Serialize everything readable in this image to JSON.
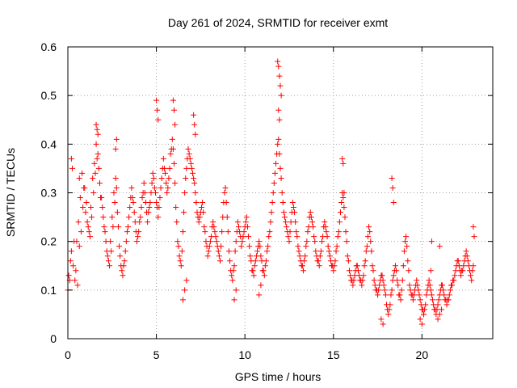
{
  "chart_data": {
    "type": "scatter",
    "title": "Day 261 of 2024, SRMTID for receiver exmt",
    "xlabel": "GPS time / hours",
    "ylabel": "SRMTID / TECUs",
    "xlim": [
      0,
      24
    ],
    "ylim": [
      0,
      0.6
    ],
    "x_ticks": [
      0,
      5,
      10,
      15,
      20
    ],
    "x_tick_labels": [
      "0",
      "5",
      "10",
      "15",
      "20"
    ],
    "y_ticks": [
      0,
      0.1,
      0.2,
      0.3,
      0.4,
      0.5,
      0.6
    ],
    "y_tick_labels": [
      "0",
      "0.1",
      "0.2",
      "0.3",
      "0.4",
      "0.5",
      "0.6"
    ],
    "grid": true,
    "marker": "plus",
    "color": "#ff0000",
    "series": [
      {
        "name": "SRMTID",
        "x": [
          0.0,
          0.1,
          0.2,
          0.3,
          0.4,
          0.5,
          0.6,
          0.7,
          0.8,
          0.9,
          1.0,
          1.1,
          1.2,
          1.3,
          1.4,
          1.5,
          1.6,
          1.7,
          1.8,
          1.9,
          2.0,
          2.1,
          2.2,
          2.3,
          2.4,
          2.5,
          2.6,
          2.7,
          2.8,
          2.9,
          3.0,
          3.1,
          3.2,
          3.3,
          3.4,
          3.5,
          3.6,
          3.7,
          3.8,
          3.9,
          4.0,
          4.1,
          4.2,
          4.3,
          4.4,
          4.5,
          4.6,
          4.7,
          4.8,
          4.9,
          5.0,
          5.1,
          5.2,
          5.3,
          5.4,
          5.5,
          5.6,
          5.7,
          5.8,
          5.9,
          6.0,
          6.1,
          6.2,
          6.3,
          6.4,
          6.5,
          6.6,
          6.7,
          6.8,
          6.9,
          7.0,
          7.1,
          7.2,
          7.3,
          7.4,
          7.5,
          7.6,
          7.7,
          7.8,
          7.9,
          8.0,
          8.1,
          8.2,
          8.3,
          8.4,
          8.5,
          8.6,
          8.7,
          8.8,
          8.9,
          9.0,
          9.1,
          9.2,
          9.3,
          9.4,
          9.5,
          9.6,
          9.7,
          9.8,
          9.9,
          10.0,
          10.1,
          10.2,
          10.3,
          10.4,
          10.5,
          10.6,
          10.7,
          10.8,
          10.9,
          11.0,
          11.1,
          11.2,
          11.3,
          11.4,
          11.5,
          11.6,
          11.7,
          11.8,
          11.9,
          12.0,
          12.1,
          12.2,
          12.3,
          12.4,
          12.5,
          12.6,
          12.7,
          12.8,
          12.9,
          13.0,
          13.1,
          13.2,
          13.3,
          13.4,
          13.5,
          13.6,
          13.7,
          13.8,
          13.9,
          14.0,
          14.1,
          14.2,
          14.3,
          14.4,
          14.5,
          14.6,
          14.7,
          14.8,
          14.9,
          15.0,
          15.1,
          15.2,
          15.3,
          15.4,
          15.5,
          15.6,
          15.7,
          15.8,
          15.9,
          16.0,
          16.1,
          16.2,
          16.3,
          16.4,
          16.5,
          16.6,
          16.7,
          16.8,
          16.9,
          17.0,
          17.1,
          17.2,
          17.3,
          17.4,
          17.5,
          17.6,
          17.7,
          17.8,
          17.9,
          18.0,
          18.1,
          18.2,
          18.3,
          18.4,
          18.5,
          18.6,
          18.7,
          18.8,
          18.9,
          19.0,
          19.1,
          19.2,
          19.3,
          19.4,
          19.5,
          19.6,
          19.7,
          19.8,
          19.9,
          20.0,
          20.1,
          20.2,
          20.3,
          20.4,
          20.5,
          20.6,
          20.7,
          20.8,
          20.9,
          21.0,
          21.1,
          21.2,
          21.3,
          21.4,
          21.5,
          21.6,
          21.7,
          21.8,
          21.9,
          22.0,
          22.1,
          22.2,
          22.3,
          22.4,
          22.5,
          22.6,
          22.7,
          22.8,
          22.9,
          0.05,
          0.15,
          0.35,
          0.45,
          0.55,
          0.65,
          0.75,
          0.85,
          0.95,
          1.05,
          1.15,
          1.25,
          1.35,
          1.45,
          1.55,
          1.65,
          1.75,
          1.85,
          1.95,
          2.05,
          2.15,
          2.25,
          2.35,
          2.45,
          2.55,
          2.65,
          2.75,
          2.85,
          2.95,
          3.05,
          3.15,
          3.25,
          3.35,
          3.45,
          3.55,
          3.65,
          3.75,
          3.85,
          3.95,
          4.05,
          4.15,
          4.25,
          4.35,
          4.45,
          4.55,
          4.65,
          4.75,
          4.85,
          4.95,
          5.05,
          5.15,
          5.25,
          5.35,
          5.45,
          5.55,
          5.65,
          5.75,
          5.85,
          5.95,
          6.05,
          6.15,
          6.25,
          6.35,
          6.45,
          6.55,
          6.65,
          6.75,
          6.85,
          6.95,
          7.05,
          7.15,
          7.25,
          7.35,
          7.45,
          7.55,
          7.65,
          7.75,
          7.85,
          7.95,
          8.05,
          8.15,
          8.25,
          8.35,
          8.45,
          8.55,
          8.65,
          8.75,
          8.85,
          8.95,
          9.05,
          9.15,
          9.25,
          9.35,
          9.45,
          9.55,
          9.65,
          9.75,
          9.85,
          9.95,
          10.05,
          10.15,
          10.25,
          10.35,
          10.45,
          10.55,
          10.65,
          10.75,
          10.85,
          10.95,
          11.05,
          11.15,
          11.25,
          11.35,
          11.45,
          11.55,
          11.65,
          11.75,
          11.85,
          11.95,
          12.05,
          12.15,
          12.25,
          12.35,
          12.45,
          12.55,
          12.65,
          12.75,
          12.85,
          12.95,
          13.05,
          13.15,
          13.25,
          13.35,
          13.45,
          13.55,
          13.65,
          13.75,
          13.85,
          13.95,
          14.05,
          14.15,
          14.25,
          14.35,
          14.45,
          14.55,
          14.65,
          14.75,
          14.85,
          14.95,
          15.05,
          15.15,
          15.25,
          15.35,
          15.45,
          15.55,
          15.65,
          15.75,
          15.85,
          15.95,
          16.05,
          16.15,
          16.25,
          16.35,
          16.45,
          16.55,
          16.65,
          16.75,
          16.85,
          16.95,
          17.05,
          17.15,
          17.25,
          17.35,
          17.45,
          17.55,
          17.65,
          17.75,
          17.85,
          17.95,
          18.05,
          18.15,
          18.25,
          18.35,
          18.45,
          18.55,
          18.65,
          18.75,
          18.85,
          18.95,
          19.05,
          19.15,
          19.25,
          19.35,
          19.45,
          19.55,
          19.65,
          19.75,
          19.85,
          19.95,
          20.05,
          20.15,
          20.25,
          20.35,
          20.45,
          20.55,
          20.65,
          20.75,
          20.85,
          20.95,
          21.05,
          21.15,
          21.25,
          21.35,
          21.45,
          21.55,
          21.65,
          21.75,
          21.85,
          21.95,
          22.05,
          22.15,
          22.25,
          22.35,
          22.45,
          22.55,
          22.65,
          22.75,
          22.85,
          1.6,
          1.65,
          1.7,
          2.7,
          2.75,
          5.0,
          5.05,
          5.1,
          5.95,
          6.0,
          6.05,
          7.1,
          7.15,
          7.2,
          11.85,
          11.9,
          11.95,
          12.0,
          12.05,
          11.9,
          11.95,
          15.5,
          15.55,
          15.6,
          18.3,
          18.35,
          18.4,
          20.5,
          20.55,
          21.0,
          22.9,
          22.95,
          0.2,
          0.25,
          0.65,
          6.5,
          6.6,
          6.7,
          9.4,
          9.5,
          10.8,
          10.9,
          17.7,
          17.8,
          19.9,
          20.0,
          20.1,
          20.9,
          21.0,
          21.1
        ],
        "y": [
          0.1,
          0.12,
          0.18,
          0.15,
          0.12,
          0.2,
          0.24,
          0.29,
          0.34,
          0.31,
          0.26,
          0.24,
          0.22,
          0.27,
          0.33,
          0.36,
          0.4,
          0.38,
          0.32,
          0.29,
          0.25,
          0.22,
          0.18,
          0.16,
          0.2,
          0.25,
          0.3,
          0.33,
          0.26,
          0.19,
          0.15,
          0.13,
          0.16,
          0.2,
          0.23,
          0.27,
          0.31,
          0.28,
          0.24,
          0.2,
          0.22,
          0.25,
          0.29,
          0.32,
          0.28,
          0.24,
          0.27,
          0.3,
          0.34,
          0.31,
          0.28,
          0.25,
          0.29,
          0.33,
          0.37,
          0.34,
          0.3,
          0.33,
          0.38,
          0.41,
          0.36,
          0.27,
          0.2,
          0.17,
          0.15,
          0.22,
          0.3,
          0.35,
          0.39,
          0.37,
          0.35,
          0.33,
          0.3,
          0.26,
          0.24,
          0.26,
          0.28,
          0.23,
          0.2,
          0.17,
          0.19,
          0.21,
          0.24,
          0.22,
          0.2,
          0.18,
          0.16,
          0.22,
          0.28,
          0.31,
          0.25,
          0.18,
          0.14,
          0.12,
          0.15,
          0.2,
          0.24,
          0.22,
          0.19,
          0.21,
          0.23,
          0.25,
          0.21,
          0.17,
          0.14,
          0.13,
          0.16,
          0.18,
          0.2,
          0.17,
          0.14,
          0.13,
          0.16,
          0.19,
          0.22,
          0.26,
          0.3,
          0.34,
          0.38,
          0.41,
          0.35,
          0.3,
          0.26,
          0.24,
          0.22,
          0.2,
          0.24,
          0.28,
          0.26,
          0.22,
          0.19,
          0.17,
          0.15,
          0.14,
          0.17,
          0.2,
          0.23,
          0.26,
          0.24,
          0.21,
          0.18,
          0.16,
          0.15,
          0.18,
          0.21,
          0.24,
          0.22,
          0.19,
          0.17,
          0.15,
          0.14,
          0.16,
          0.19,
          0.22,
          0.26,
          0.3,
          0.27,
          0.22,
          0.17,
          0.14,
          0.12,
          0.11,
          0.13,
          0.15,
          0.14,
          0.12,
          0.11,
          0.13,
          0.16,
          0.19,
          0.23,
          0.2,
          0.15,
          0.12,
          0.1,
          0.09,
          0.11,
          0.13,
          0.12,
          0.1,
          0.07,
          0.05,
          0.07,
          0.1,
          0.13,
          0.15,
          0.12,
          0.09,
          0.08,
          0.12,
          0.18,
          0.21,
          0.16,
          0.11,
          0.09,
          0.08,
          0.1,
          0.12,
          0.1,
          0.08,
          0.06,
          0.05,
          0.07,
          0.1,
          0.12,
          0.1,
          0.08,
          0.06,
          0.05,
          0.07,
          0.09,
          0.11,
          0.1,
          0.08,
          0.07,
          0.08,
          0.1,
          0.11,
          0.12,
          0.14,
          0.16,
          0.15,
          0.13,
          0.14,
          0.16,
          0.18,
          0.16,
          0.14,
          0.12,
          0.15,
          0.13,
          0.16,
          0.2,
          0.14,
          0.11,
          0.19,
          0.22,
          0.27,
          0.31,
          0.28,
          0.23,
          0.21,
          0.25,
          0.3,
          0.34,
          0.37,
          0.35,
          0.29,
          0.27,
          0.23,
          0.2,
          0.17,
          0.15,
          0.18,
          0.23,
          0.28,
          0.31,
          0.23,
          0.17,
          0.14,
          0.15,
          0.18,
          0.22,
          0.25,
          0.29,
          0.29,
          0.26,
          0.22,
          0.21,
          0.24,
          0.27,
          0.3,
          0.3,
          0.26,
          0.26,
          0.28,
          0.32,
          0.33,
          0.3,
          0.27,
          0.27,
          0.31,
          0.35,
          0.35,
          0.32,
          0.31,
          0.35,
          0.39,
          0.39,
          0.32,
          0.24,
          0.19,
          0.16,
          0.18,
          0.26,
          0.33,
          0.37,
          0.38,
          0.36,
          0.34,
          0.32,
          0.28,
          0.25,
          0.25,
          0.27,
          0.26,
          0.22,
          0.19,
          0.18,
          0.2,
          0.23,
          0.23,
          0.21,
          0.19,
          0.17,
          0.19,
          0.25,
          0.3,
          0.28,
          0.22,
          0.16,
          0.13,
          0.14,
          0.18,
          0.22,
          0.23,
          0.21,
          0.2,
          0.22,
          0.24,
          0.23,
          0.19,
          0.16,
          0.14,
          0.15,
          0.17,
          0.19,
          0.19,
          0.16,
          0.14,
          0.15,
          0.18,
          0.21,
          0.24,
          0.28,
          0.32,
          0.36,
          0.4,
          0.38,
          0.33,
          0.28,
          0.25,
          0.23,
          0.21,
          0.22,
          0.26,
          0.27,
          0.24,
          0.21,
          0.18,
          0.16,
          0.15,
          0.16,
          0.19,
          0.22,
          0.25,
          0.25,
          0.23,
          0.2,
          0.17,
          0.16,
          0.17,
          0.2,
          0.23,
          0.23,
          0.21,
          0.18,
          0.16,
          0.15,
          0.15,
          0.18,
          0.21,
          0.24,
          0.28,
          0.29,
          0.25,
          0.2,
          0.16,
          0.13,
          0.12,
          0.12,
          0.14,
          0.15,
          0.13,
          0.12,
          0.12,
          0.15,
          0.18,
          0.21,
          0.22,
          0.18,
          0.14,
          0.11,
          0.1,
          0.1,
          0.12,
          0.13,
          0.11,
          0.09,
          0.06,
          0.06,
          0.09,
          0.12,
          0.14,
          0.14,
          0.11,
          0.09,
          0.1,
          0.15,
          0.2,
          0.19,
          0.14,
          0.1,
          0.09,
          0.09,
          0.11,
          0.11,
          0.09,
          0.07,
          0.06,
          0.06,
          0.09,
          0.11,
          0.11,
          0.09,
          0.07,
          0.06,
          0.06,
          0.08,
          0.1,
          0.11,
          0.09,
          0.08,
          0.08,
          0.09,
          0.11,
          0.12,
          0.13,
          0.15,
          0.16,
          0.14,
          0.14,
          0.15,
          0.17,
          0.17,
          0.15,
          0.13,
          0.14,
          0.44,
          0.43,
          0.42,
          0.39,
          0.41,
          0.49,
          0.47,
          0.45,
          0.49,
          0.47,
          0.44,
          0.46,
          0.44,
          0.42,
          0.57,
          0.56,
          0.54,
          0.52,
          0.5,
          0.47,
          0.45,
          0.37,
          0.36,
          0.3,
          0.33,
          0.31,
          0.28,
          0.14,
          0.2,
          0.19,
          0.23,
          0.21,
          0.37,
          0.35,
          0.33,
          0.08,
          0.1,
          0.12,
          0.08,
          0.1,
          0.09,
          0.11,
          0.04,
          0.03,
          0.04,
          0.03,
          0.05,
          0.04,
          0.05,
          0.06
        ]
      }
    ]
  }
}
